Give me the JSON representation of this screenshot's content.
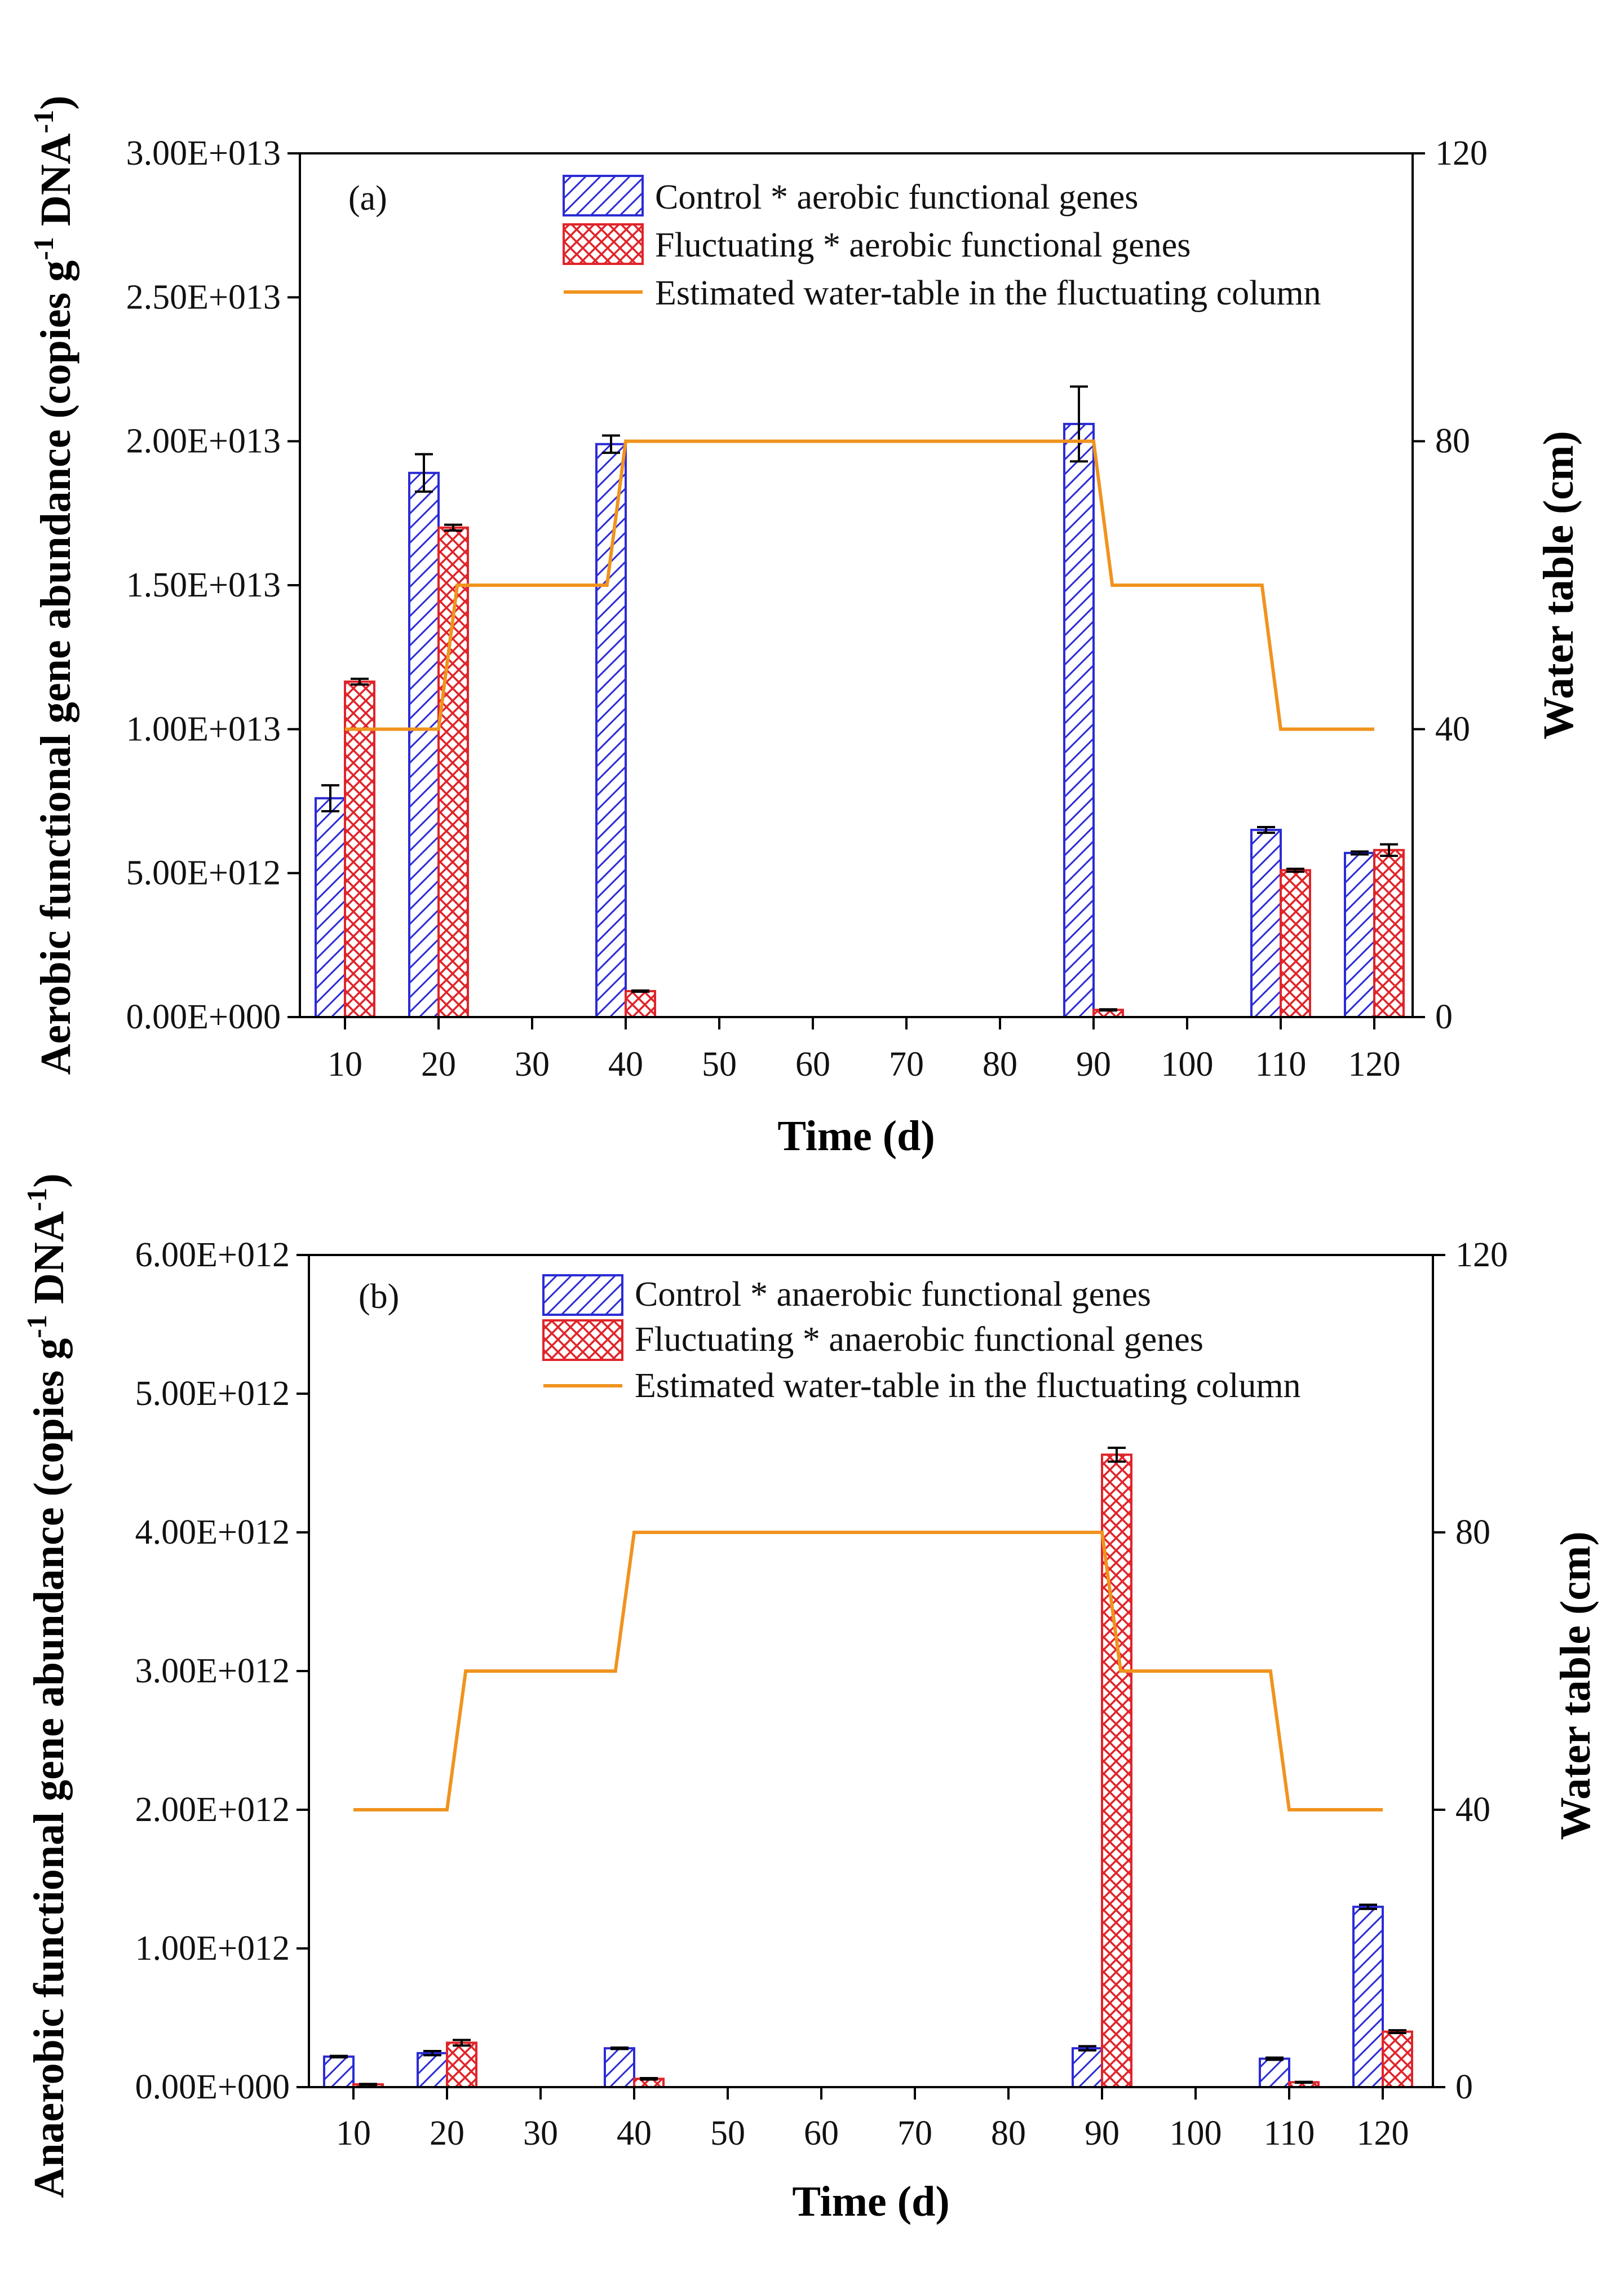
{
  "colors": {
    "control": "#2b2bd6",
    "fluctuating": "#e0242a",
    "water": "#f0931e",
    "axis": "#000000",
    "error": "#000000"
  },
  "chart_data": [
    {
      "type": "bar",
      "panel_label": "(a)",
      "xlabel": "Time (d)",
      "ylabel": "Aerobic functional gene abundance (copies g",
      "ylabel_sup1": "-1",
      "ylabel_mid": " DNA",
      "ylabel_sup2": "-1",
      "ylabel_end": ")",
      "y2label": "Water table (cm)",
      "x_ticks": [
        "10",
        "20",
        "30",
        "40",
        "50",
        "60",
        "70",
        "80",
        "90",
        "100",
        "110",
        "120"
      ],
      "ylim": [
        0,
        30000000000000.0
      ],
      "y_ticks": [
        0,
        5000000000000.0,
        10000000000000.0,
        15000000000000.0,
        20000000000000.0,
        25000000000000.0,
        30000000000000.0
      ],
      "y_tick_labels": [
        "0.00E+000",
        "5.00E+012",
        "1.00E+013",
        "1.50E+013",
        "2.00E+013",
        "2.50E+013",
        "3.00E+013"
      ],
      "y2lim": [
        0,
        120
      ],
      "y2_ticks": [
        0,
        40,
        80,
        120
      ],
      "y2_tick_labels": [
        "0",
        "40",
        "80",
        "120"
      ],
      "legend": [
        "Control * aerobic functional genes",
        "Fluctuating * aerobic functional genes",
        "Estimated water-table in the fluctuating column"
      ],
      "legend_position": "top-right",
      "series": [
        {
          "name": "Control * aerobic functional genes",
          "x": [
            10,
            20,
            40,
            90,
            110,
            120
          ],
          "values": [
            7600000000000.0,
            18900000000000.0,
            19900000000000.0,
            20600000000000.0,
            6500000000000.0,
            5700000000000.0
          ],
          "errors": [
            450000000000.0,
            650000000000.0,
            300000000000.0,
            1300000000000.0,
            100000000000.0,
            50000000000.0
          ]
        },
        {
          "name": "Fluctuating * aerobic functional genes",
          "x": [
            10,
            20,
            40,
            90,
            110,
            120
          ],
          "values": [
            11650000000000.0,
            17000000000000.0,
            900000000000.0,
            250000000000.0,
            5100000000000.0,
            5800000000000.0
          ],
          "errors": [
            100000000000.0,
            100000000000.0,
            20000000000.0,
            20000000000.0,
            50000000000.0,
            200000000000.0
          ]
        },
        {
          "name": "Estimated water-table in the fluctuating column",
          "axis": "y2",
          "points": [
            [
              10,
              40
            ],
            [
              20,
              40
            ],
            [
              22,
              60
            ],
            [
              38,
              60
            ],
            [
              40,
              80
            ],
            [
              90,
              80
            ],
            [
              92,
              60
            ],
            [
              108,
              60
            ],
            [
              110,
              40
            ],
            [
              120,
              40
            ]
          ]
        }
      ]
    },
    {
      "type": "bar",
      "panel_label": "(b)",
      "xlabel": "Time (d)",
      "ylabel": "Anaerobic functional gene abundance (copies g",
      "ylabel_sup1": "-1",
      "ylabel_mid": " DNA",
      "ylabel_sup2": "-1",
      "ylabel_end": ")",
      "y2label": "Water table (cm)",
      "x_ticks": [
        "10",
        "20",
        "30",
        "40",
        "50",
        "60",
        "70",
        "80",
        "90",
        "100",
        "110",
        "120"
      ],
      "ylim": [
        0,
        6000000000000.0
      ],
      "y_ticks": [
        0,
        1000000000000.0,
        2000000000000.0,
        3000000000000.0,
        4000000000000.0,
        5000000000000.0,
        6000000000000.0
      ],
      "y_tick_labels": [
        "0.00E+000",
        "1.00E+012",
        "2.00E+012",
        "3.00E+012",
        "4.00E+012",
        "5.00E+012",
        "6.00E+012"
      ],
      "y2lim": [
        0,
        120
      ],
      "y2_ticks": [
        0,
        40,
        80,
        120
      ],
      "y2_tick_labels": [
        "0",
        "40",
        "80",
        "120"
      ],
      "legend": [
        "Control * anaerobic functional genes",
        "Fluctuating * anaerobic functional genes",
        "Estimated water-table in the fluctuating column"
      ],
      "legend_position": "top-right",
      "series": [
        {
          "name": "Control * anaerobic functional genes",
          "x": [
            10,
            20,
            40,
            90,
            110,
            120
          ],
          "values": [
            220000000000.0,
            245000000000.0,
            280000000000.0,
            280000000000.0,
            205000000000.0,
            1300000000000.0
          ],
          "errors": [
            5000000000.0,
            15000000000.0,
            5000000000.0,
            15000000000.0,
            8000000000.0,
            15000000000.0
          ]
        },
        {
          "name": "Fluctuating * anaerobic functional genes",
          "x": [
            10,
            20,
            40,
            90,
            110,
            120
          ],
          "values": [
            20000000000.0,
            320000000000.0,
            60000000000.0,
            4560000000000.0,
            35000000000.0,
            400000000000.0
          ],
          "errors": [
            3000000000.0,
            20000000000.0,
            5000000000.0,
            50000000000.0,
            3000000000.0,
            10000000000.0
          ]
        },
        {
          "name": "Estimated water-table in the fluctuating column",
          "axis": "y2",
          "points": [
            [
              10,
              40
            ],
            [
              20,
              40
            ],
            [
              22,
              60
            ],
            [
              38,
              60
            ],
            [
              40,
              80
            ],
            [
              90,
              80
            ],
            [
              92,
              60
            ],
            [
              108,
              60
            ],
            [
              110,
              40
            ],
            [
              120,
              40
            ]
          ]
        }
      ]
    }
  ]
}
